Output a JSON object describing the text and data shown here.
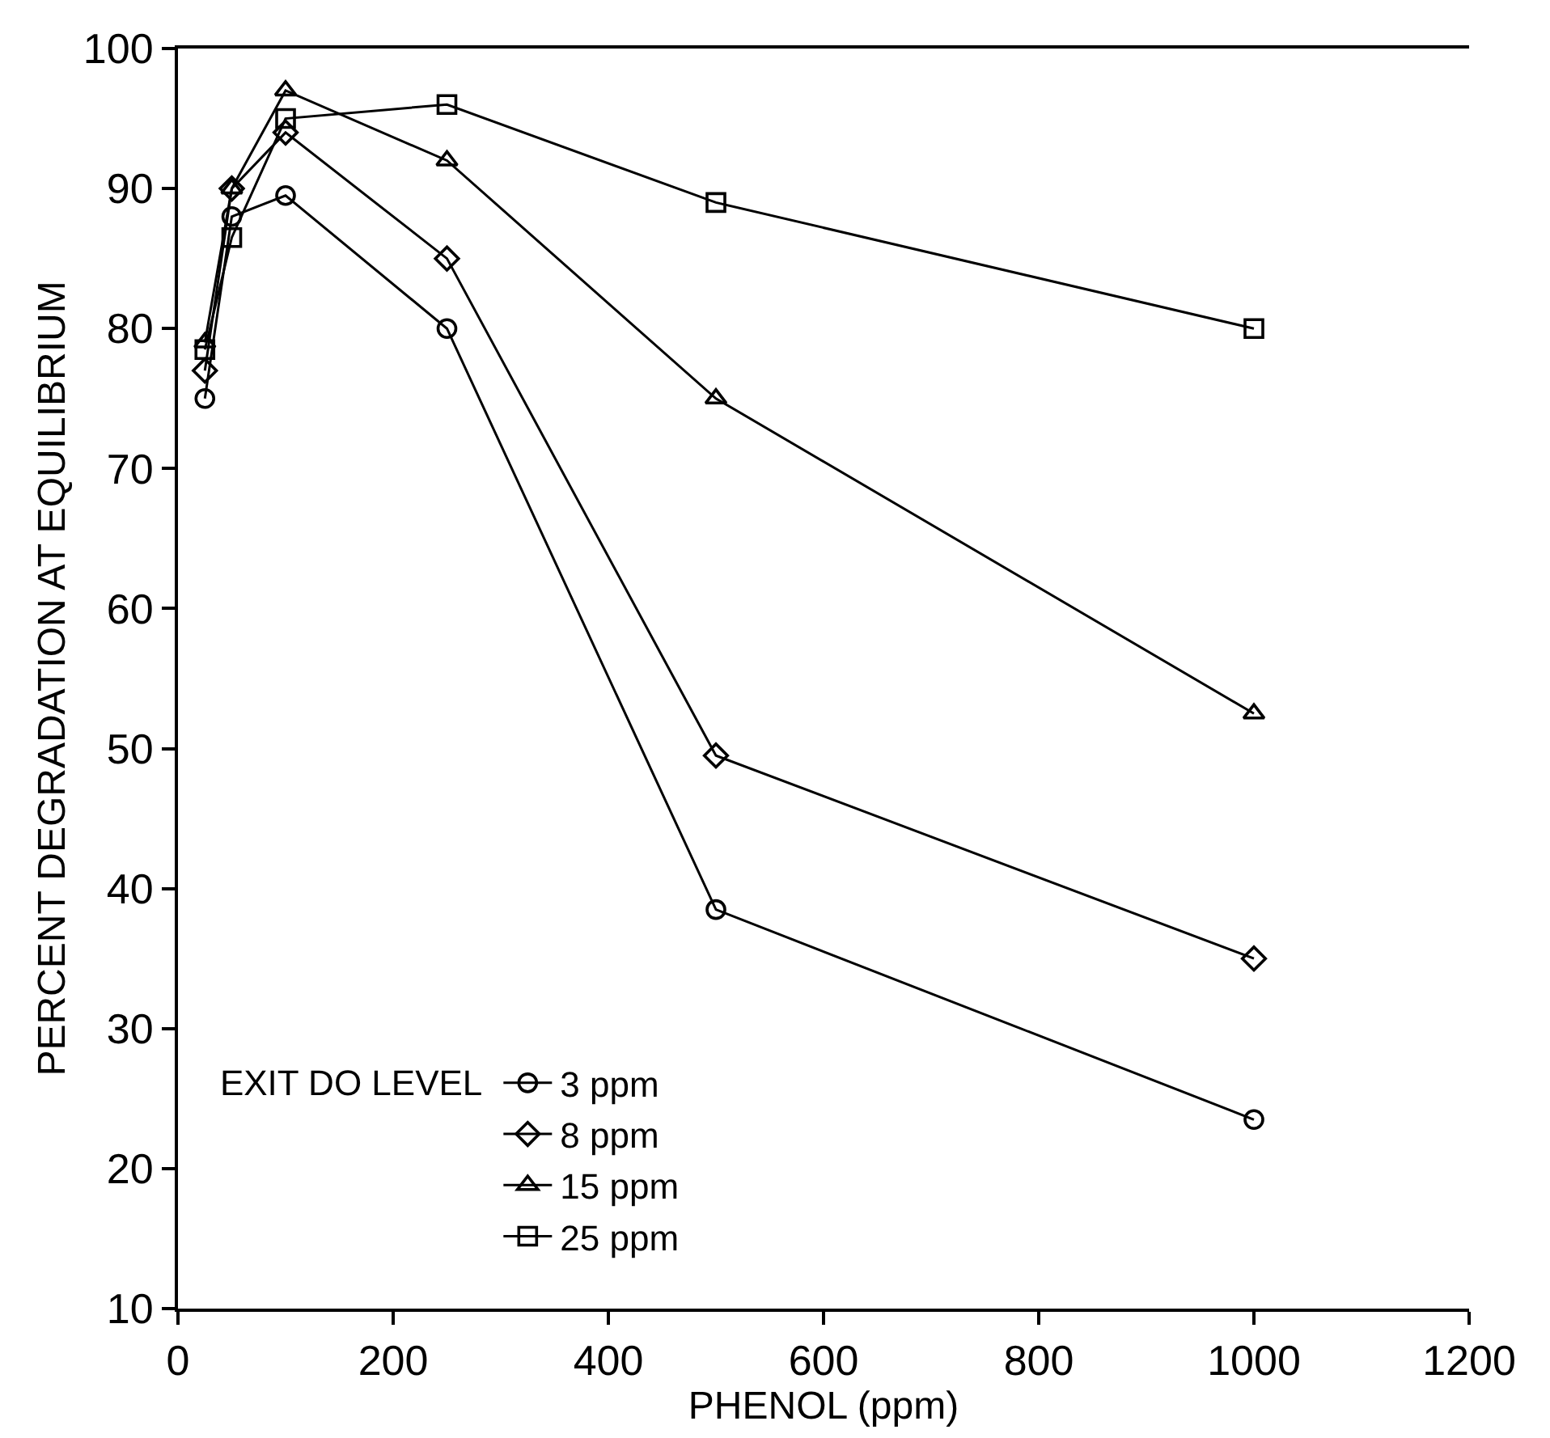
{
  "chart_data": {
    "type": "line",
    "xlabel": "PHENOL (ppm)",
    "ylabel": "PERCENT DEGRADATION AT EQUILIBRIUM",
    "legend_title": "EXIT DO LEVEL",
    "x": [
      25,
      50,
      100,
      250,
      500,
      1000
    ],
    "series": [
      {
        "name": "3 ppm",
        "color": "#000000",
        "marker": "circle",
        "values": [
          75,
          88,
          89.5,
          80,
          38.5,
          23.5
        ]
      },
      {
        "name": "8 ppm",
        "color": "#000000",
        "marker": "diamond",
        "values": [
          77,
          90,
          94,
          85,
          49.5,
          35
        ]
      },
      {
        "name": "15 ppm",
        "color": "#000000",
        "marker": "triangle",
        "values": [
          79,
          90,
          97,
          92,
          75,
          52.5
        ]
      },
      {
        "name": "25 ppm",
        "color": "#000000",
        "marker": "square",
        "values": [
          78.5,
          86.5,
          95,
          96,
          89,
          80
        ]
      }
    ],
    "xlim": [
      0,
      1200
    ],
    "xticks": [
      0,
      200,
      400,
      600,
      800,
      1000,
      1200
    ],
    "ylim": [
      10,
      100
    ],
    "yticks": [
      10,
      20,
      30,
      40,
      50,
      60,
      70,
      80,
      90,
      100
    ],
    "legend": "bottom left",
    "line_style": "solid"
  }
}
